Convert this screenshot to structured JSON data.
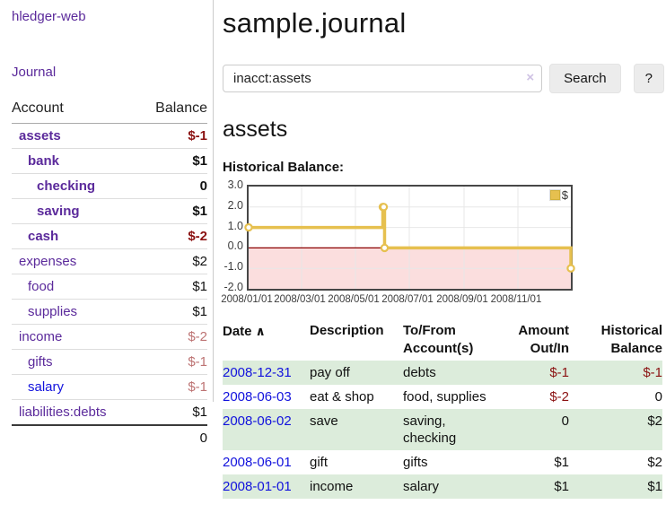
{
  "app": {
    "brand": "hledger-web"
  },
  "sidebar": {
    "nav_journal": "Journal",
    "accounts": {
      "col_account": "Account",
      "col_balance": "Balance",
      "rows": [
        {
          "name": "assets",
          "depth": 1,
          "bold": true,
          "balance": "$-1",
          "neg": "strong",
          "link": "purple"
        },
        {
          "name": "bank",
          "depth": 2,
          "bold": true,
          "balance": "$1",
          "neg": "none",
          "link": "purple"
        },
        {
          "name": "checking",
          "depth": 3,
          "bold": true,
          "balance": "0",
          "neg": "none",
          "link": "purple"
        },
        {
          "name": "saving",
          "depth": 3,
          "bold": true,
          "balance": "$1",
          "neg": "none",
          "link": "purple"
        },
        {
          "name": "cash",
          "depth": 2,
          "bold": true,
          "balance": "$-2",
          "neg": "strong",
          "link": "purple"
        },
        {
          "name": "expenses",
          "depth": 1,
          "bold": false,
          "balance": "$2",
          "neg": "none",
          "link": "purple"
        },
        {
          "name": "food",
          "depth": 2,
          "bold": false,
          "balance": "$1",
          "neg": "none",
          "link": "purple"
        },
        {
          "name": "supplies",
          "depth": 2,
          "bold": false,
          "balance": "$1",
          "neg": "none",
          "link": "purple"
        },
        {
          "name": "income",
          "depth": 1,
          "bold": false,
          "balance": "$-2",
          "neg": "muted",
          "link": "purple"
        },
        {
          "name": "gifts",
          "depth": 2,
          "bold": false,
          "balance": "$-1",
          "neg": "muted",
          "link": "purple"
        },
        {
          "name": "salary",
          "depth": 2,
          "bold": false,
          "balance": "$-1",
          "neg": "muted",
          "link": "blue"
        },
        {
          "name": "liabilities:debts",
          "depth": 1,
          "bold": false,
          "balance": "$1",
          "neg": "none",
          "link": "purple"
        }
      ],
      "total": "0"
    }
  },
  "main": {
    "title": "sample.journal",
    "search": {
      "query": "inacct:assets",
      "clear_icon": "×",
      "search_button": "Search",
      "help_button": "?"
    },
    "account_heading": "assets",
    "chart_label": "Historical Balance:"
  },
  "chart_data": {
    "type": "line",
    "title": "Historical Balance",
    "step": true,
    "series": [
      {
        "name": "$",
        "color": "#e6c04f",
        "points": [
          [
            "2008-01-01",
            1
          ],
          [
            "2008-06-01",
            2
          ],
          [
            "2008-06-02",
            2
          ],
          [
            "2008-06-03",
            0
          ],
          [
            "2008-12-31",
            -1
          ]
        ]
      }
    ],
    "x_range": [
      "2008-01-01",
      "2008-12-31"
    ],
    "x_ticks": [
      "2008/01/01",
      "2008/03/01",
      "2008/05/01",
      "2008/07/01",
      "2008/09/01",
      "2008/11/01"
    ],
    "y_ticks": [
      "3.0",
      "2.0",
      "1.0",
      "0.0",
      "-1.0",
      "-2.0"
    ],
    "ylim": [
      -2,
      3
    ],
    "grid": true,
    "legend": {
      "label": "$",
      "position": "top-right"
    },
    "colors": {
      "line": "#e6c04f",
      "marker_fill": "#ffffff",
      "negative_region": "#fbdede",
      "zero_line": "#8b0000",
      "gridline": "#e7e7e7",
      "border": "#474747"
    }
  },
  "register": {
    "headers": {
      "date": "Date",
      "date_sort_icon": "∧",
      "description": "Description",
      "account": "To/From Account(s)",
      "amount": "Amount Out/In",
      "balance": "Historical Balance"
    },
    "rows": [
      {
        "date": "2008-12-31",
        "description": "pay off",
        "account": "debts",
        "amount": "$-1",
        "amount_neg": true,
        "balance": "$-1",
        "balance_neg": true,
        "shaded": true
      },
      {
        "date": "2008-06-03",
        "description": "eat & shop",
        "account": "food, supplies",
        "amount": "$-2",
        "amount_neg": true,
        "balance": "0",
        "balance_neg": false,
        "shaded": false
      },
      {
        "date": "2008-06-02",
        "description": "save",
        "account": "saving, checking",
        "amount": "0",
        "amount_neg": false,
        "balance": "$2",
        "balance_neg": false,
        "shaded": true
      },
      {
        "date": "2008-06-01",
        "description": "gift",
        "account": "gifts",
        "amount": "$1",
        "amount_neg": false,
        "balance": "$2",
        "balance_neg": false,
        "shaded": false
      },
      {
        "date": "2008-01-01",
        "description": "income",
        "account": "salary",
        "amount": "$1",
        "amount_neg": false,
        "balance": "$1",
        "balance_neg": false,
        "shaded": true
      }
    ]
  }
}
